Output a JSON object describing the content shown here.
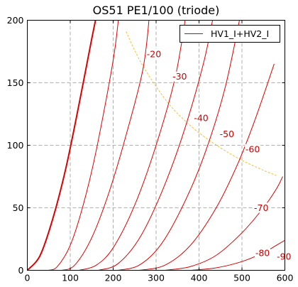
{
  "chart_data": {
    "type": "line",
    "title": "OS51  PE1/100 (triode)",
    "xlabel": "",
    "ylabel": "",
    "xlim": [
      0,
      600
    ],
    "ylim": [
      0,
      200
    ],
    "xticks": [
      "0",
      "100",
      "200",
      "300",
      "400",
      "500",
      "600"
    ],
    "yticks": [
      "0",
      "50",
      "100",
      "150",
      "200"
    ],
    "grid": true,
    "legend": {
      "placement": "top-right",
      "entries": [
        "HV1_I+HV2_I"
      ]
    },
    "colors": {
      "curves": "#dd0000",
      "max_dissipation": "#f0c040",
      "grid": "#999999"
    },
    "series": [
      {
        "label": "",
        "x": [
          0,
          30,
          60,
          90,
          120,
          150,
          165
        ],
        "y": [
          0,
          12,
          42,
          82,
          132,
          185,
          210
        ],
        "thick": true
      },
      {
        "label": "-20",
        "x": [
          50,
          70,
          100,
          130,
          160,
          200,
          215
        ],
        "y": [
          0,
          3,
          20,
          52,
          95,
          168,
          210
        ]
      },
      {
        "label": "-30",
        "x": [
          80,
          110,
          150,
          190,
          230,
          270,
          286
        ],
        "y": [
          0,
          4,
          26,
          62,
          108,
          162,
          210
        ]
      },
      {
        "label": "-40",
        "x": [
          120,
          160,
          200,
          250,
          300,
          345,
          372
        ],
        "y": [
          0,
          4,
          18,
          52,
          100,
          155,
          210
        ]
      },
      {
        "label": "-50",
        "x": [
          165,
          210,
          260,
          310,
          360,
          410,
          437
        ],
        "y": [
          0,
          5,
          25,
          60,
          106,
          165,
          210
        ]
      },
      {
        "label": "-60",
        "x": [
          210,
          260,
          310,
          360,
          410,
          460,
          500
        ],
        "y": [
          0,
          4,
          20,
          50,
          90,
          145,
          210
        ]
      },
      {
        "label": "-70",
        "x": [
          260,
          320,
          380,
          440,
          490,
          530,
          575
        ],
        "y": [
          0,
          4,
          20,
          50,
          85,
          120,
          165
        ]
      },
      {
        "label": "-80",
        "x": [
          320,
          380,
          440,
          500,
          550,
          580,
          595
        ],
        "y": [
          0,
          3,
          12,
          30,
          50,
          65,
          75
        ]
      },
      {
        "label": "-90",
        "x": [
          380,
          440,
          500,
          550,
          580,
          600
        ],
        "y": [
          0,
          2,
          7,
          14,
          20,
          24
        ]
      }
    ],
    "max_dissipation": {
      "x": [
        230,
        250,
        270,
        300,
        330,
        360,
        400,
        450,
        500,
        550,
        580
      ],
      "y": [
        191,
        176,
        163,
        147,
        133,
        122,
        110,
        98,
        88,
        80,
        76
      ]
    },
    "curve_labels": [
      {
        "text": "-20",
        "x": 295,
        "y": 173
      },
      {
        "text": "-30",
        "x": 355,
        "y": 155
      },
      {
        "text": "-40",
        "x": 405,
        "y": 122
      },
      {
        "text": "-50",
        "x": 465,
        "y": 109
      },
      {
        "text": "-60",
        "x": 525,
        "y": 97
      },
      {
        "text": "-70",
        "x": 545,
        "y": 50
      },
      {
        "text": "-80",
        "x": 548,
        "y": 14
      },
      {
        "text": "-90",
        "x": 598,
        "y": 11
      }
    ]
  }
}
